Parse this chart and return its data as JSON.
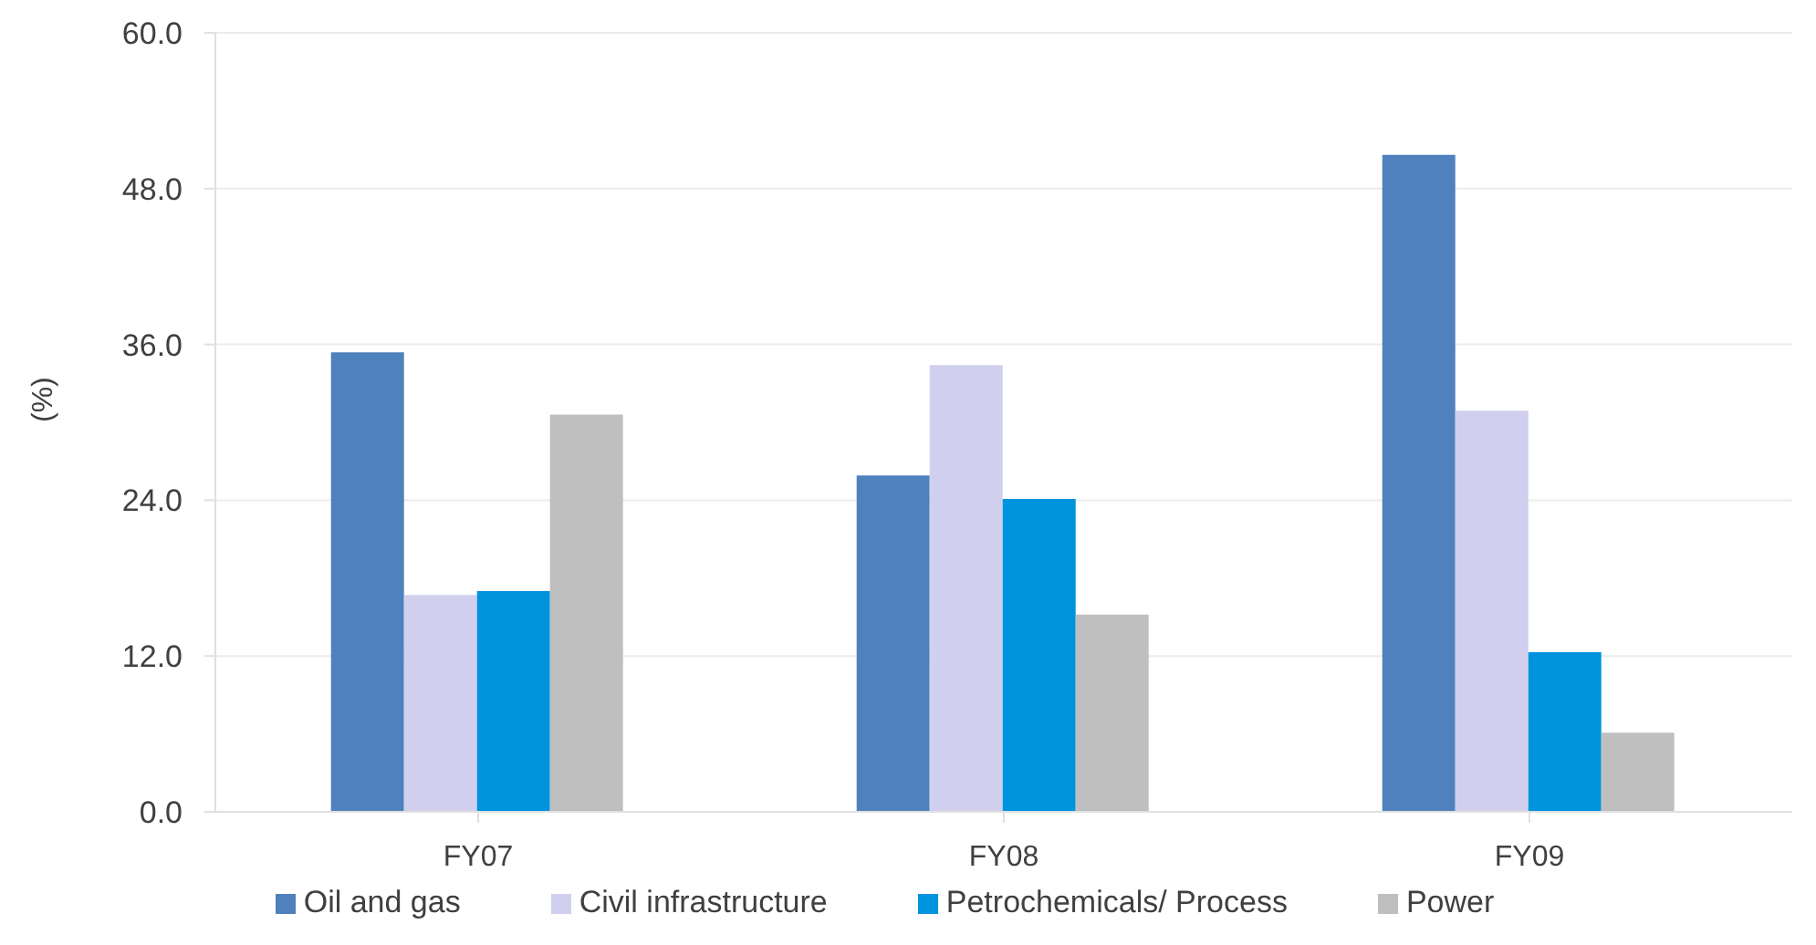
{
  "chart_data": {
    "type": "bar",
    "categories": [
      "FY07",
      "FY08",
      "FY09"
    ],
    "series": [
      {
        "name": "Oil and gas",
        "color": "#4f81bd",
        "values": [
          35.4,
          25.9,
          50.6
        ]
      },
      {
        "name": "Civil infrastructure",
        "color": "#d0d0ee",
        "values": [
          16.7,
          34.4,
          30.9
        ]
      },
      {
        "name": "Petrochemicals/ Process",
        "color": "#0093dd",
        "values": [
          17.0,
          24.1,
          12.3
        ]
      },
      {
        "name": "Power",
        "color": "#bfbfbf",
        "values": [
          30.6,
          15.2,
          6.1
        ]
      }
    ],
    "ylabel": "(%)",
    "ylim": [
      0,
      60
    ],
    "yticks": [
      {
        "value": 0,
        "label": "0.0"
      },
      {
        "value": 12,
        "label": "12.0"
      },
      {
        "value": 24,
        "label": "24.0"
      },
      {
        "value": 36,
        "label": "36.0"
      },
      {
        "value": 48,
        "label": "48.0"
      },
      {
        "value": 60,
        "label": "60.0"
      }
    ],
    "grid": "y",
    "legend": "bottom"
  }
}
